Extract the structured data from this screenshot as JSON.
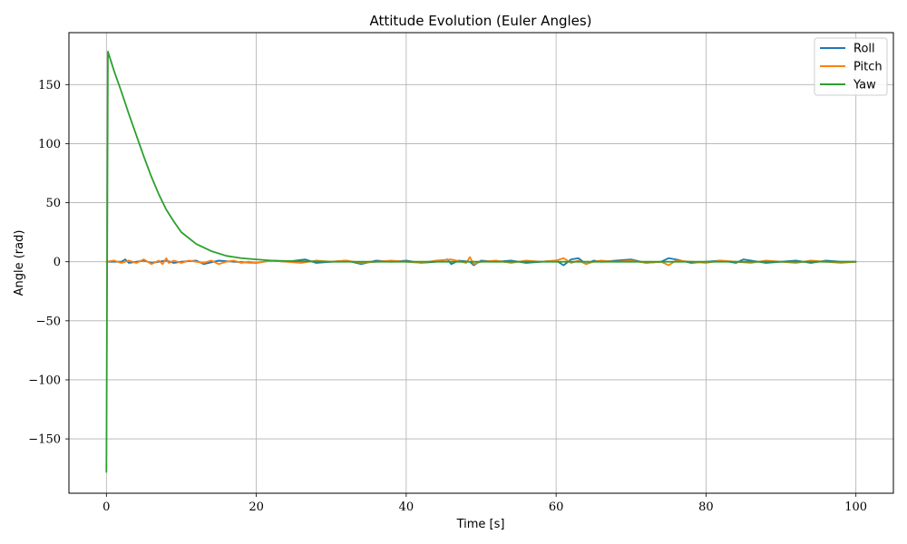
{
  "chart_data": {
    "type": "line",
    "title": "Attitude Evolution (Euler Angles)",
    "xlabel": "Time [s]",
    "ylabel": "Angle (rad)",
    "xlim": [
      -5,
      105
    ],
    "ylim": [
      -196,
      194
    ],
    "xticks": [
      0,
      20,
      40,
      60,
      80,
      100
    ],
    "yticks": [
      -150,
      -100,
      -50,
      0,
      50,
      100,
      150
    ],
    "ytick_labels": [
      "−150",
      "−100",
      "−50",
      "0",
      "50",
      "100",
      "150"
    ],
    "grid": true,
    "legend_position": "top-right",
    "series": [
      {
        "name": "Roll",
        "color": "#1f77b4",
        "x": [
          0,
          2,
          2.5,
          3,
          4,
          5,
          6,
          7,
          8,
          9,
          10,
          12,
          13,
          15,
          17,
          20,
          22,
          24,
          26.5,
          28,
          30,
          32,
          34,
          36,
          38,
          40,
          42,
          44,
          45.5,
          46,
          47,
          48.5,
          49,
          50,
          52,
          54,
          56,
          58,
          60,
          60.5,
          61,
          62,
          63,
          64,
          65,
          66,
          68,
          70,
          72,
          74,
          75,
          76,
          78,
          80,
          82,
          84,
          85,
          86,
          88,
          90,
          92,
          94,
          96,
          98,
          100
        ],
        "y": [
          0,
          0,
          2,
          -1,
          0,
          1,
          -1,
          0,
          1,
          -1,
          0,
          1,
          -2,
          1,
          0,
          -1,
          1,
          0,
          2,
          -1,
          0,
          1,
          -2,
          1,
          0,
          1,
          -1,
          0,
          2,
          -2,
          1,
          0,
          -3,
          1,
          0,
          1,
          -1,
          0,
          1,
          -1,
          -3,
          2,
          3,
          -2,
          1,
          0,
          1,
          2,
          -1,
          0,
          3,
          2,
          -1,
          0,
          1,
          -1,
          2,
          1,
          -1,
          0,
          1,
          -1,
          1,
          0,
          0
        ]
      },
      {
        "name": "Pitch",
        "color": "#ff7f0e",
        "x": [
          0,
          1,
          2,
          3,
          4,
          5,
          6,
          7,
          7.5,
          8,
          8.3,
          9,
          10,
          11,
          12,
          13,
          14,
          15,
          16,
          17,
          18,
          19,
          20,
          22,
          24,
          26,
          28,
          30,
          32,
          34,
          36,
          38,
          40,
          42,
          44,
          46,
          48,
          48.5,
          49,
          50,
          52,
          54,
          56,
          58,
          60,
          61,
          62,
          63,
          64,
          65,
          66,
          68,
          70,
          72,
          74,
          75,
          76,
          78,
          80,
          82,
          84,
          86,
          88,
          90,
          92,
          94,
          96,
          98,
          100
        ],
        "y": [
          0,
          1,
          -1,
          1,
          -1,
          2,
          -2,
          1,
          -2,
          3,
          -1,
          1,
          -1,
          1,
          0,
          -1,
          1,
          -2,
          0,
          1,
          -1,
          0,
          -1,
          1,
          0,
          -1,
          1,
          0,
          1,
          -1,
          0,
          1,
          0,
          -1,
          1,
          2,
          -1,
          4,
          -2,
          0,
          1,
          -1,
          1,
          0,
          1,
          3,
          -1,
          1,
          -2,
          0,
          1,
          0,
          1,
          -1,
          0,
          -3,
          1,
          0,
          -1,
          1,
          0,
          -1,
          1,
          0,
          -1,
          1,
          0,
          -1,
          0
        ]
      },
      {
        "name": "Yaw",
        "color": "#2ca02c",
        "x": [
          0,
          0.2,
          0.5,
          1,
          2,
          3,
          4,
          5,
          6,
          7,
          8,
          9,
          10,
          12,
          14,
          16,
          18,
          20,
          22,
          25,
          30,
          40,
          50,
          60,
          70,
          80,
          90,
          100
        ],
        "y": [
          -178,
          178,
          172,
          162,
          144,
          125,
          107,
          89,
          72,
          57,
          44,
          34,
          25,
          15,
          9,
          5,
          3,
          2,
          1,
          0.5,
          0,
          0,
          0,
          0,
          0,
          0,
          0,
          0
        ]
      }
    ]
  }
}
